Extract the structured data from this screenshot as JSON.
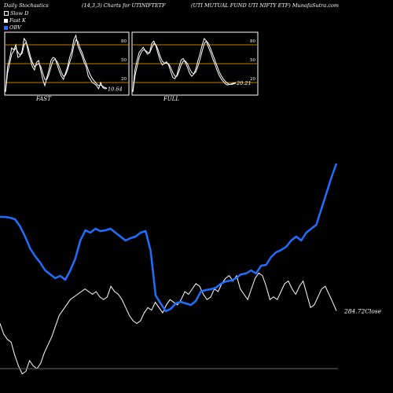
{
  "header": {
    "left": "Daily Stochastics",
    "middle": "(14,3,3) Charts for UTINIFTETF",
    "right": "(UTI MUTUAL FUND UTI NIFTY ETF) MunafaSutra.com"
  },
  "legend": [
    {
      "label": "Slow D",
      "color": "#ffffff",
      "style": "outline"
    },
    {
      "label": "Fast K",
      "color": "#ffffff",
      "style": "fill"
    },
    {
      "label": "OBV",
      "color": "#1f6fff",
      "style": "fill"
    }
  ],
  "chart_data": [
    {
      "type": "line",
      "panel": "FAST",
      "label": "FAST",
      "ylim": [
        0,
        100
      ],
      "y_ticks": [
        80,
        50,
        20
      ],
      "ref_lines": [
        80,
        50,
        20
      ],
      "last_value_label": "10.64",
      "series": [
        {
          "name": "Fast K",
          "color": "#ffffff",
          "values": [
            5,
            45,
            58,
            75,
            72,
            80,
            60,
            62,
            70,
            90,
            85,
            68,
            57,
            45,
            40,
            52,
            55,
            40,
            25,
            15,
            28,
            40,
            55,
            60,
            58,
            48,
            38,
            30,
            25,
            35,
            45,
            60,
            70,
            88,
            95,
            78,
            70,
            62,
            52,
            45,
            30,
            25,
            20,
            18,
            15,
            10,
            20,
            12,
            10,
            10.64
          ]
        },
        {
          "name": "Slow D",
          "color": "#ffffff",
          "values": [
            5,
            35,
            50,
            65,
            70,
            75,
            68,
            64,
            66,
            80,
            84,
            75,
            62,
            52,
            45,
            48,
            50,
            46,
            35,
            25,
            25,
            33,
            45,
            55,
            57,
            53,
            45,
            36,
            30,
            32,
            40,
            52,
            62,
            78,
            88,
            85,
            75,
            68,
            58,
            50,
            40,
            32,
            26,
            22,
            18,
            15,
            16,
            14,
            12,
            11
          ]
        }
      ]
    },
    {
      "type": "line",
      "panel": "FULL",
      "label": "FULL",
      "ylim": [
        0,
        100
      ],
      "y_ticks": [
        80,
        50,
        20
      ],
      "ref_lines": [
        80,
        50,
        20
      ],
      "last_value_label": "20.21",
      "series": [
        {
          "name": "Fast K",
          "color": "#ffffff",
          "values": [
            5,
            40,
            55,
            68,
            72,
            76,
            70,
            65,
            68,
            82,
            86,
            78,
            66,
            55,
            48,
            50,
            53,
            48,
            38,
            28,
            26,
            32,
            45,
            56,
            58,
            52,
            44,
            35,
            30,
            33,
            42,
            55,
            66,
            80,
            90,
            86,
            76,
            68,
            58,
            50,
            40,
            32,
            26,
            22,
            18,
            16,
            17,
            18,
            19,
            20.21
          ]
        },
        {
          "name": "Slow D",
          "color": "#ffffff",
          "values": [
            5,
            30,
            45,
            60,
            68,
            72,
            71,
            68,
            67,
            75,
            82,
            80,
            72,
            62,
            54,
            51,
            51,
            50,
            44,
            36,
            30,
            30,
            38,
            48,
            54,
            54,
            50,
            42,
            36,
            34,
            37,
            46,
            57,
            70,
            82,
            86,
            82,
            74,
            65,
            56,
            47,
            38,
            31,
            26,
            22,
            19,
            17,
            17,
            18,
            19
          ]
        }
      ]
    },
    {
      "type": "line",
      "panel": "price",
      "last_value_label": "284.72",
      "last_value_suffix": "Close",
      "series": [
        {
          "name": "Close",
          "color": "#ffffff",
          "values": [
            280,
            276,
            274,
            273,
            268,
            264,
            261,
            262,
            266,
            264,
            263,
            265,
            269,
            272,
            275,
            279,
            283,
            285,
            287,
            289,
            290,
            291,
            292,
            293,
            292,
            291,
            292,
            290,
            289,
            290,
            294,
            292,
            291,
            289,
            286,
            283,
            281,
            280,
            281,
            284,
            286,
            285,
            288,
            286,
            284,
            287,
            289,
            288,
            287,
            289,
            292,
            291,
            293,
            295,
            294,
            291,
            289,
            290,
            293,
            292,
            295,
            297,
            298,
            296,
            298,
            293,
            291,
            289,
            293,
            297,
            299,
            298,
            294,
            289,
            290,
            289,
            292,
            295,
            296,
            293,
            291,
            294,
            296,
            291,
            286,
            287,
            290,
            293,
            294,
            291,
            288,
            284.72
          ]
        },
        {
          "name": "OBV",
          "color": "#1f6fff",
          "values": [
            190,
            190,
            189,
            187,
            178,
            165,
            150,
            140,
            132,
            122,
            117,
            112,
            115,
            110,
            122,
            137,
            160,
            173,
            170,
            175,
            172,
            173,
            175,
            170,
            165,
            160,
            163,
            165,
            170,
            172,
            147,
            90,
            80,
            70,
            73,
            80,
            82,
            80,
            78,
            83,
            95,
            97,
            98,
            100,
            105,
            108,
            109,
            112,
            117,
            118,
            122,
            118,
            128,
            129,
            139,
            145,
            148,
            152,
            160,
            165,
            160,
            170,
            175,
            180,
            200,
            220,
            240,
            258
          ]
        }
      ]
    }
  ]
}
